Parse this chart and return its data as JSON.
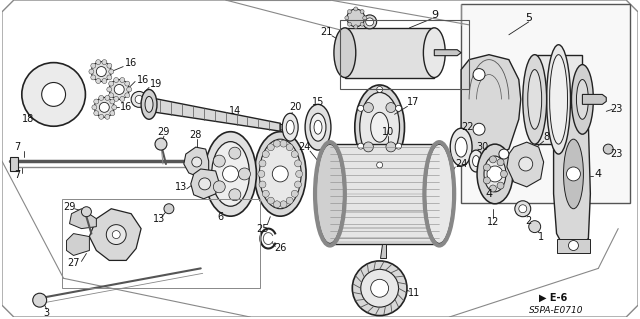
{
  "bg_color": "#f0f0f0",
  "border_color": "#666666",
  "diagram_code": "S5PA-E0710",
  "section_code": "E-6",
  "fig_width": 6.4,
  "fig_height": 3.19,
  "dpi": 100,
  "gray1": "#222222",
  "gray2": "#555555",
  "gray3": "#888888",
  "gray4": "#bbbbbb",
  "white": "#ffffff",
  "lgray": "#cccccc",
  "mgray": "#999999"
}
